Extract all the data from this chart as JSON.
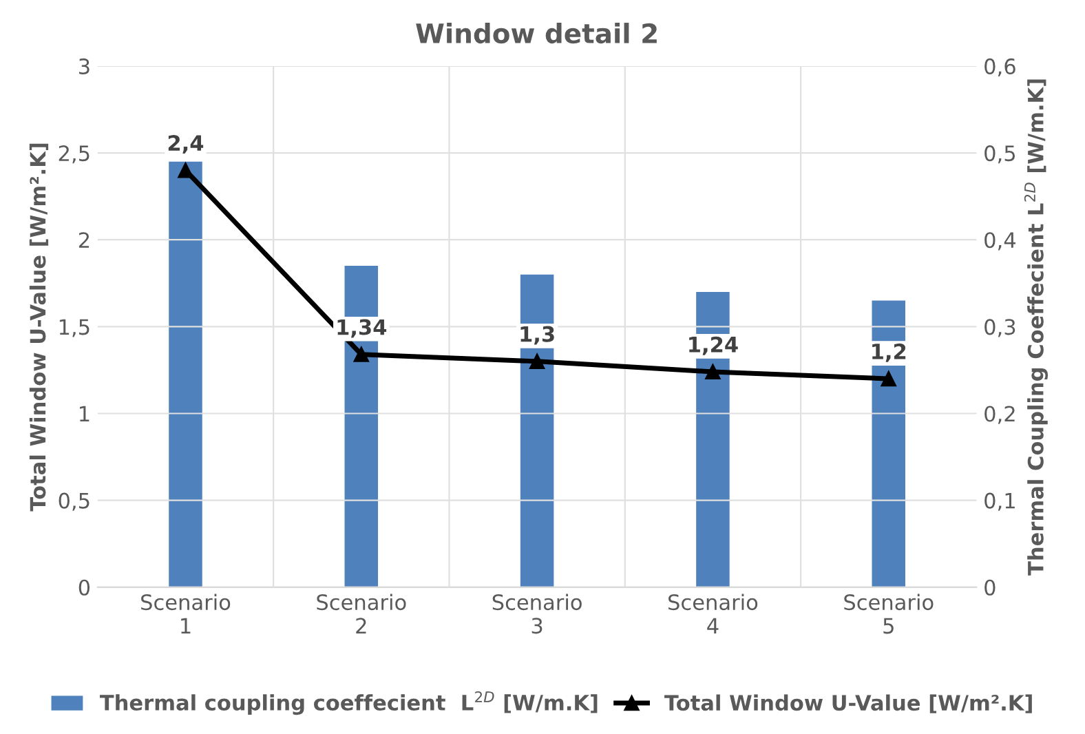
{
  "chart_data": {
    "type": "bar",
    "title": "Window detail 2",
    "categories": [
      "Scenario\n1",
      "Scenario\n2",
      "Scenario\n3",
      "Scenario\n4",
      "Scenario\n5"
    ],
    "series": [
      {
        "name": "Thermal coupling coeffecient  L$^{2D}$ [W/m.K]",
        "axis": "y2",
        "color": "#4f81bd",
        "values": [
          0.49,
          0.37,
          0.36,
          0.34,
          0.33
        ]
      },
      {
        "name": "Total Window U-Value [W/m².K]",
        "type": "line",
        "axis": "y",
        "color": "#000000",
        "marker": "triangle",
        "values": [
          2.4,
          1.34,
          1.3,
          1.24,
          1.2
        ],
        "value_labels": [
          "2,4",
          "1,34",
          "1,3",
          "1,24",
          "1,2"
        ]
      }
    ],
    "ylabel": "Total Window U-Value [W/m².K]",
    "y2label": "Thermal Coupling Coeffecient L$^{2D}$ [W/m.K]",
    "ylim": [
      0,
      3
    ],
    "yticks": [
      0,
      {
        "value": 0.5,
        "label": "0,5"
      },
      1,
      {
        "value": 1.5,
        "label": "1,5"
      },
      2,
      {
        "value": 2.5,
        "label": "2,5"
      },
      3
    ],
    "y2lim": [
      0,
      0.6
    ],
    "y2ticks": [
      0,
      {
        "value": 0.1,
        "label": "0,1"
      },
      {
        "value": 0.2,
        "label": "0,2"
      },
      {
        "value": 0.3,
        "label": "0,3"
      },
      {
        "value": 0.4,
        "label": "0,4"
      },
      {
        "value": 0.5,
        "label": "0,5"
      },
      {
        "value": 0.6,
        "label": "0,6"
      }
    ],
    "grid": true,
    "legend": "bottom"
  }
}
